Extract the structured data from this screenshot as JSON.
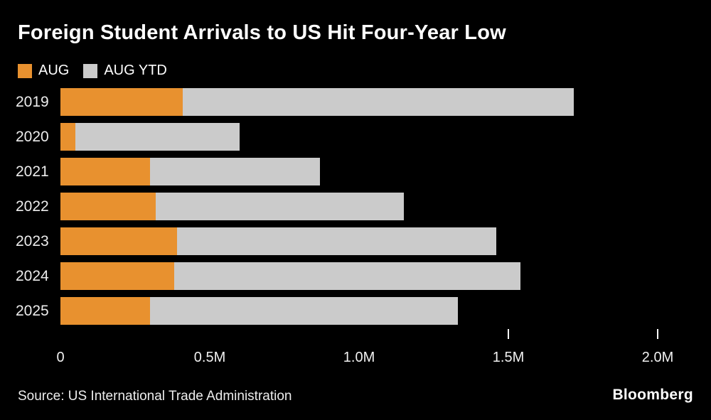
{
  "header": {
    "title": "Foreign Student Arrivals to US Hit Four-Year Low"
  },
  "legend": [
    {
      "label": "AUG",
      "color": "#E8912F"
    },
    {
      "label": "AUG YTD",
      "color": "#CBCBCB"
    }
  ],
  "chart_data": {
    "type": "bar",
    "orientation": "horizontal",
    "stacked": true,
    "title": "Foreign Student Arrivals to US Hit Four-Year Low",
    "categories": [
      "2019",
      "2020",
      "2021",
      "2022",
      "2023",
      "2024",
      "2025"
    ],
    "series": [
      {
        "name": "AUG",
        "color": "#E8912F",
        "values": [
          0.41,
          0.05,
          0.3,
          0.32,
          0.39,
          0.38,
          0.3
        ]
      },
      {
        "name": "AUG YTD",
        "color": "#CBCBCB",
        "values": [
          1.72,
          0.6,
          0.87,
          1.15,
          1.46,
          1.54,
          1.33
        ]
      }
    ],
    "units": "millions of arrivals",
    "xlim": [
      0,
      2.0
    ],
    "x_ticks": [
      {
        "value": 0,
        "label": "0"
      },
      {
        "value": 0.5,
        "label": "0.5M"
      },
      {
        "value": 1.0,
        "label": "1.0M"
      },
      {
        "value": 1.5,
        "label": "1.5M"
      },
      {
        "value": 2.0,
        "label": "2.0M"
      }
    ],
    "tick_marks_at": [
      1.5,
      2.0
    ],
    "legend_position": "top-left",
    "grid": false,
    "background": "#000000"
  },
  "footer": {
    "source": "Source: US International Trade Administration",
    "brand": "Bloomberg"
  }
}
